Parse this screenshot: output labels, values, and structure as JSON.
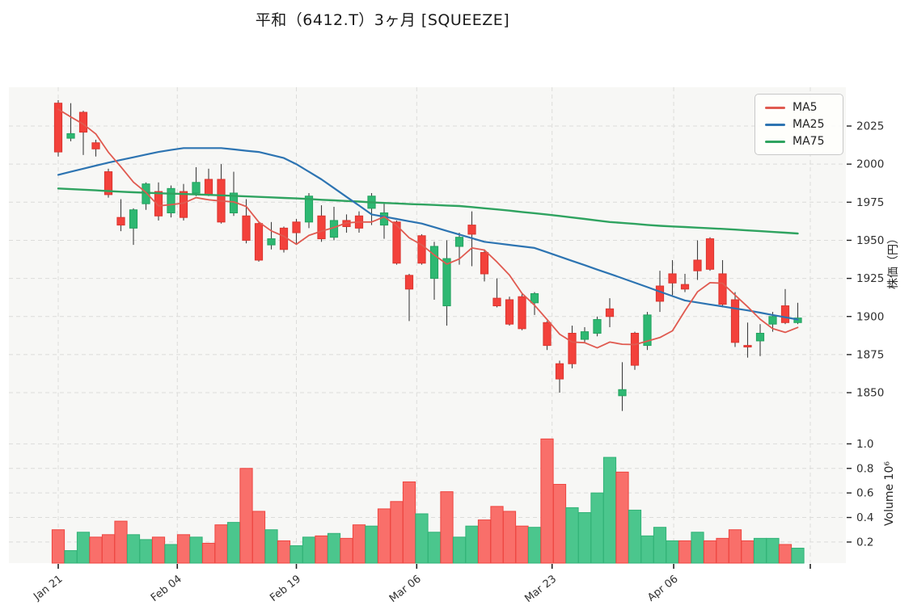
{
  "title": "平和（6412.T）3ヶ月 [SQUEEZE]",
  "chart_data": {
    "type": "candlestick",
    "title": "平和（6412.T）3ヶ月 [SQUEEZE]",
    "ylabel_price": "株価（円）",
    "ylabel_volume": "Volume 10⁶",
    "legend_position": "top-right",
    "grid": "dashed",
    "price_axis_range": [
      1838,
      2050
    ],
    "volume_axis_range": [
      0,
      1.1
    ],
    "price_ticks": [
      2025,
      2000,
      1975,
      1950,
      1925,
      1900,
      1875,
      1850
    ],
    "volume_ticks": [
      "1.0",
      "0.8",
      "0.6",
      "0.4",
      "0.2"
    ],
    "x_ticks": [
      {
        "label": "Jan 21",
        "day": 1
      },
      {
        "label": "Feb 04",
        "day": 10.5
      },
      {
        "label": "Feb 19",
        "day": 20
      },
      {
        "label": "Mar 06",
        "day": 29.6
      },
      {
        "label": "Mar 23",
        "day": 40.4
      },
      {
        "label": "Apr 06",
        "day": 50.1
      },
      {
        "label": "",
        "day": 61
      }
    ],
    "legend": [
      {
        "label": "MA5"
      },
      {
        "label": "MA25"
      },
      {
        "label": "MA75"
      }
    ],
    "colors": {
      "ma5": "#e05a50",
      "ma25": "#2d74b2",
      "ma75": "#2fa360",
      "up_fill": "#2eb872",
      "up_edge": "#23a25f",
      "down_fill": "#f3413b",
      "down_edge": "#da352f",
      "vol_up_fill": "#4bc68d",
      "vol_up_edge": "#32b277",
      "vol_down_fill": "#f96f6a",
      "vol_down_edge": "#ee4540",
      "panel_bg": "#f7f7f5",
      "grid": "#dcdcda",
      "wick": "#3f3f3f",
      "tick_text": "#2f2f2f",
      "tick_mark": "#222222"
    },
    "candle_columns": [
      "open",
      "high",
      "low",
      "close",
      "volume_millions",
      "volume_direction"
    ],
    "candles": [
      [
        2040,
        2042,
        2005,
        2008,
        0.3,
        "d"
      ],
      [
        2017,
        2040,
        2015,
        2020,
        0.13,
        "u"
      ],
      [
        2034,
        2035,
        2006,
        2021,
        0.28,
        "u"
      ],
      [
        2014,
        2016,
        2005,
        2010,
        0.24,
        "d"
      ],
      [
        1995,
        1997,
        1978,
        1980,
        0.26,
        "d"
      ],
      [
        1965,
        1977,
        1956,
        1960,
        0.37,
        "d"
      ],
      [
        1958,
        1971,
        1947,
        1970,
        0.26,
        "u"
      ],
      [
        1974,
        1988,
        1970,
        1987,
        0.22,
        "u"
      ],
      [
        1982,
        1988,
        1963,
        1966,
        0.24,
        "d"
      ],
      [
        1968,
        1986,
        1965,
        1984,
        0.18,
        "u"
      ],
      [
        1982,
        1987,
        1963,
        1965,
        0.26,
        "d"
      ],
      [
        1981,
        1998,
        1979,
        1988,
        0.24,
        "u"
      ],
      [
        1990,
        1997,
        1979,
        1980,
        0.19,
        "d"
      ],
      [
        1990,
        2000,
        1961,
        1962,
        0.34,
        "d"
      ],
      [
        1968,
        1995,
        1966,
        1981,
        0.36,
        "u"
      ],
      [
        1966,
        1977,
        1948,
        1950,
        0.8,
        "d"
      ],
      [
        1961,
        1962,
        1936,
        1937,
        0.45,
        "d"
      ],
      [
        1947,
        1962,
        1944,
        1951,
        0.3,
        "u"
      ],
      [
        1958,
        1959,
        1942,
        1944,
        0.21,
        "d"
      ],
      [
        1962,
        1964,
        1947,
        1955,
        0.17,
        "u"
      ],
      [
        1962,
        1981,
        1958,
        1979,
        0.24,
        "u"
      ],
      [
        1966,
        1973,
        1949,
        1951,
        0.25,
        "d"
      ],
      [
        1952,
        1972,
        1950,
        1963,
        0.27,
        "u"
      ],
      [
        1963,
        1967,
        1955,
        1959,
        0.23,
        "d"
      ],
      [
        1966,
        1969,
        1955,
        1958,
        0.34,
        "d"
      ],
      [
        1971,
        1981,
        1960,
        1979,
        0.33,
        "u"
      ],
      [
        1960,
        1974,
        1951,
        1968,
        0.47,
        "d"
      ],
      [
        1962,
        1963,
        1934,
        1935,
        0.53,
        "d"
      ],
      [
        1927,
        1928,
        1897,
        1918,
        0.69,
        "d"
      ],
      [
        1953,
        1954,
        1934,
        1935,
        0.43,
        "u"
      ],
      [
        1925,
        1949,
        1911,
        1946,
        0.28,
        "u"
      ],
      [
        1907,
        1950,
        1894,
        1938,
        0.61,
        "d"
      ],
      [
        1946,
        1955,
        1934,
        1952,
        0.24,
        "u"
      ],
      [
        1960,
        1969,
        1933,
        1954,
        0.33,
        "u"
      ],
      [
        1942,
        1944,
        1923,
        1928,
        0.38,
        "d"
      ],
      [
        1912,
        1925,
        1906,
        1907,
        0.49,
        "d"
      ],
      [
        1911,
        1913,
        1894,
        1895,
        0.45,
        "d"
      ],
      [
        1913,
        1915,
        1891,
        1892,
        0.33,
        "d"
      ],
      [
        1909,
        1916,
        1901,
        1915,
        0.32,
        "u"
      ],
      [
        1896,
        1897,
        1878,
        1881,
        1.04,
        "d"
      ],
      [
        1869,
        1871,
        1850,
        1859,
        0.67,
        "d"
      ],
      [
        1889,
        1894,
        1866,
        1869,
        0.48,
        "u"
      ],
      [
        1885,
        1893,
        1883,
        1890,
        0.44,
        "u"
      ],
      [
        1889,
        1900,
        1887,
        1898,
        0.6,
        "u"
      ],
      [
        1905,
        1912,
        1893,
        1900,
        0.89,
        "u"
      ],
      [
        1848,
        1870,
        1838,
        1852,
        0.77,
        "d"
      ],
      [
        1889,
        1890,
        1865,
        1868,
        0.46,
        "u"
      ],
      [
        1881,
        1903,
        1878,
        1901,
        0.25,
        "u"
      ],
      [
        1920,
        1930,
        1903,
        1910,
        0.32,
        "u"
      ],
      [
        1928,
        1937,
        1914,
        1922,
        0.21,
        "u"
      ],
      [
        1921,
        1928,
        1916,
        1918,
        0.21,
        "d"
      ],
      [
        1937,
        1950,
        1924,
        1930,
        0.28,
        "u"
      ],
      [
        1951,
        1952,
        1930,
        1931,
        0.21,
        "d"
      ],
      [
        1928,
        1937,
        1906,
        1908,
        0.23,
        "d"
      ],
      [
        1911,
        1916,
        1880,
        1883,
        0.3,
        "d"
      ],
      [
        1881,
        1896,
        1873,
        1880,
        0.21,
        "d"
      ],
      [
        1884,
        1895,
        1874,
        1889,
        0.23,
        "u"
      ],
      [
        1895,
        1903,
        1890,
        1900,
        0.23,
        "u"
      ],
      [
        1907,
        1918,
        1895,
        1896,
        0.18,
        "d"
      ],
      [
        1896,
        1909,
        1895,
        1899,
        0.15,
        "u"
      ]
    ],
    "ma5": {
      "values": [
        2036.0,
        2031.0,
        2026.2,
        2019.8,
        2007.8,
        1998.2,
        1988.2,
        1981.4,
        1972.6,
        1973.4,
        1974.4,
        1978.0,
        1976.6,
        1975.8,
        1975.2,
        1972.2,
        1962.0,
        1956.2,
        1952.6,
        1947.4,
        1953.2,
        1956.0,
        1958.4,
        1961.4,
        1962.0,
        1962.0,
        1965.4,
        1959.8,
        1951.6,
        1947.0,
        1940.4,
        1934.4,
        1937.8,
        1945.0,
        1943.6,
        1935.8,
        1927.2,
        1915.2,
        1907.4,
        1898.0,
        1888.4,
        1883.2,
        1882.8,
        1879.4,
        1883.2,
        1881.8,
        1881.6,
        1883.8,
        1886.2,
        1890.6,
        1903.8,
        1916.2,
        1922.2,
        1921.8,
        1914.0,
        1906.4,
        1898.2,
        1892.0,
        1889.6,
        1892.8
      ]
    },
    "ma25": {
      "values": [
        1993,
        1995,
        1997,
        1999,
        2001,
        2002.8,
        2004.5,
        2006.3,
        2008,
        2009.3,
        2010.5,
        2010.5,
        2010.5,
        2010.5,
        2009.7,
        2008.8,
        2008,
        2006,
        2004,
        2000,
        1995,
        1990,
        1984.3,
        1978.5,
        1972.8,
        1967,
        1965.5,
        1964,
        1962.5,
        1961,
        1958.6,
        1956.2,
        1953.8,
        1951.4,
        1949,
        1948,
        1947,
        1946,
        1945,
        1942.2,
        1939.3,
        1936.5,
        1933.7,
        1930.8,
        1928,
        1925.1,
        1922.2,
        1919.3,
        1916.3,
        1913.4,
        1910.5,
        1909.2,
        1907.9,
        1906.6,
        1905.3,
        1904,
        1902.5,
        1901,
        1899.5,
        1898
      ]
    },
    "ma75": {
      "values": [
        1984,
        1983.6,
        1983.2,
        1982.8,
        1982.3,
        1981.9,
        1981.5,
        1981.2,
        1980.9,
        1980.6,
        1980.4,
        1980.1,
        1979.8,
        1979.5,
        1979.2,
        1978.8,
        1978.5,
        1978.2,
        1977.8,
        1977.5,
        1977.1,
        1976.6,
        1976.2,
        1975.8,
        1975.4,
        1974.9,
        1974.5,
        1974.2,
        1973.8,
        1973.5,
        1973.2,
        1972.8,
        1972.5,
        1971.8,
        1971,
        1970.3,
        1969.5,
        1968.6,
        1967.8,
        1966.9,
        1966,
        1965,
        1964,
        1963,
        1962,
        1961.4,
        1960.8,
        1960.1,
        1959.5,
        1959.1,
        1958.7,
        1958.3,
        1957.9,
        1957.5,
        1957,
        1956.5,
        1956,
        1955.5,
        1955,
        1954.5
      ]
    }
  }
}
